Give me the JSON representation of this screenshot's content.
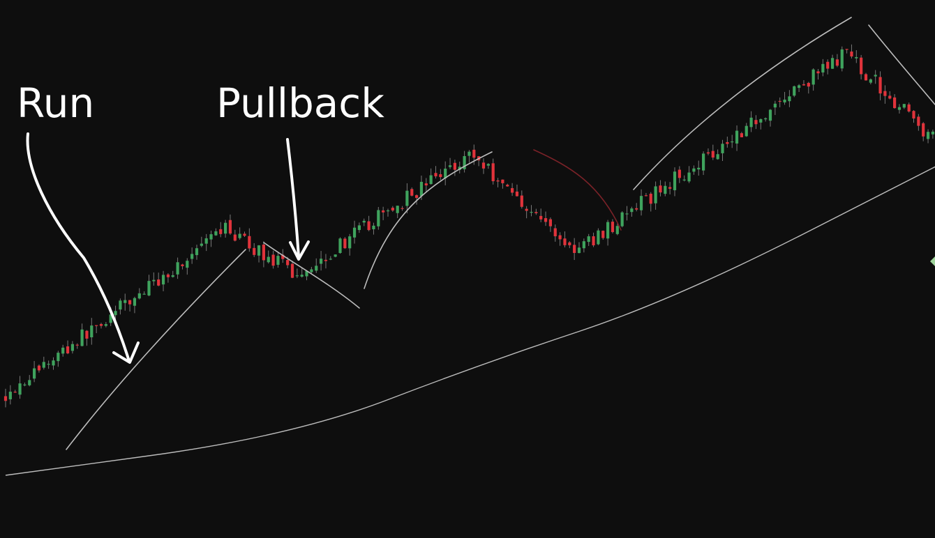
{
  "chart_data": {
    "type": "candlestick",
    "title": "",
    "xlabel": "",
    "ylabel": "",
    "grid": false,
    "annotations": [
      {
        "text": "Run"
      },
      {
        "text": "Pullback"
      }
    ],
    "colors": {
      "background": "#0e0e0e",
      "up": "#3fa35d",
      "down": "#e0333b",
      "wick": "#7a7a7a",
      "moving_average": "#bdbdbd",
      "trend_sketch": "#bdbdbd",
      "pullback_sketch": "#7a2228",
      "annotation": "#ffffff"
    },
    "legs": [
      {
        "phase": "run",
        "n": 48,
        "start": 30,
        "end": 65
      },
      {
        "phase": "pullback",
        "n": 14,
        "end": 55
      },
      {
        "phase": "run",
        "n": 36,
        "end": 80
      },
      {
        "phase": "pullback",
        "n": 22,
        "end": 60
      },
      {
        "phase": "run",
        "n": 56,
        "end": 100
      },
      {
        "phase": "pullback",
        "n": 20,
        "end": 82
      }
    ],
    "moving_average": [
      {
        "x": 0,
        "y": 14
      },
      {
        "x": 60,
        "y": 22
      },
      {
        "x": 100,
        "y": 37
      },
      {
        "x": 140,
        "y": 50
      },
      {
        "x": 196,
        "y": 78
      }
    ]
  }
}
